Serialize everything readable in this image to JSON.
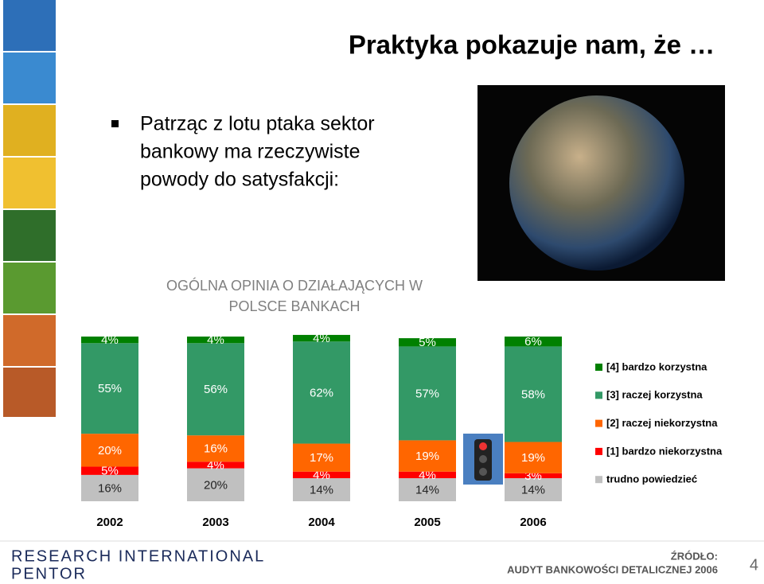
{
  "header": {
    "title": "Praktyka pokazuje nam, że …"
  },
  "bullet": {
    "lines": [
      "Patrząc z lotu ptaka sektor",
      "bankowy ma rzeczywiste",
      "powody do satysfakcji:"
    ]
  },
  "footer": {
    "logo_lines": [
      "RESEARCH INTERNATIONAL",
      "PENTOR"
    ],
    "source_lines": [
      "ŹRÓDŁO:",
      "AUDYT BANKOWOŚCI DETALICZNEJ 2006"
    ],
    "page_number": "4"
  },
  "chart_data": {
    "type": "stacked_bar",
    "title_lines": [
      "OGÓLNA OPINIA O DZIAŁAJĄCYCH W",
      "POLSCE BANKACH"
    ],
    "categories": [
      "2002",
      "2003",
      "2004",
      "2005",
      "2006"
    ],
    "series": [
      {
        "name": "[4] bardzo korzystna",
        "color": "#008000",
        "values": [
          4,
          4,
          4,
          5,
          6
        ],
        "value_labels": [
          "4%",
          "4%",
          "4%",
          "5%",
          "6%"
        ]
      },
      {
        "name": "[3] raczej korzystna",
        "color": "#339966",
        "values": [
          55,
          56,
          62,
          57,
          58
        ],
        "value_labels": [
          "55%",
          "56%",
          "62%",
          "57%",
          "58%"
        ]
      },
      {
        "name": "[2] raczej niekorzystna",
        "color": "#ff6600",
        "values": [
          20,
          16,
          17,
          19,
          19
        ],
        "value_labels": [
          "20%",
          "16%",
          "17%",
          "19%",
          "19%"
        ]
      },
      {
        "name": "[1] bardzo niekorzystna",
        "color": "#ff0000",
        "values": [
          5,
          4,
          4,
          4,
          3
        ],
        "value_labels": [
          "5%",
          "4%",
          "4%",
          "4%",
          "3%"
        ]
      },
      {
        "name": "trudno powiedzieć",
        "color": "#c0c0c0",
        "values": [
          16,
          20,
          14,
          14,
          14
        ],
        "value_labels": [
          "16%",
          "20%",
          "14%",
          "14%",
          "14%"
        ]
      }
    ]
  }
}
